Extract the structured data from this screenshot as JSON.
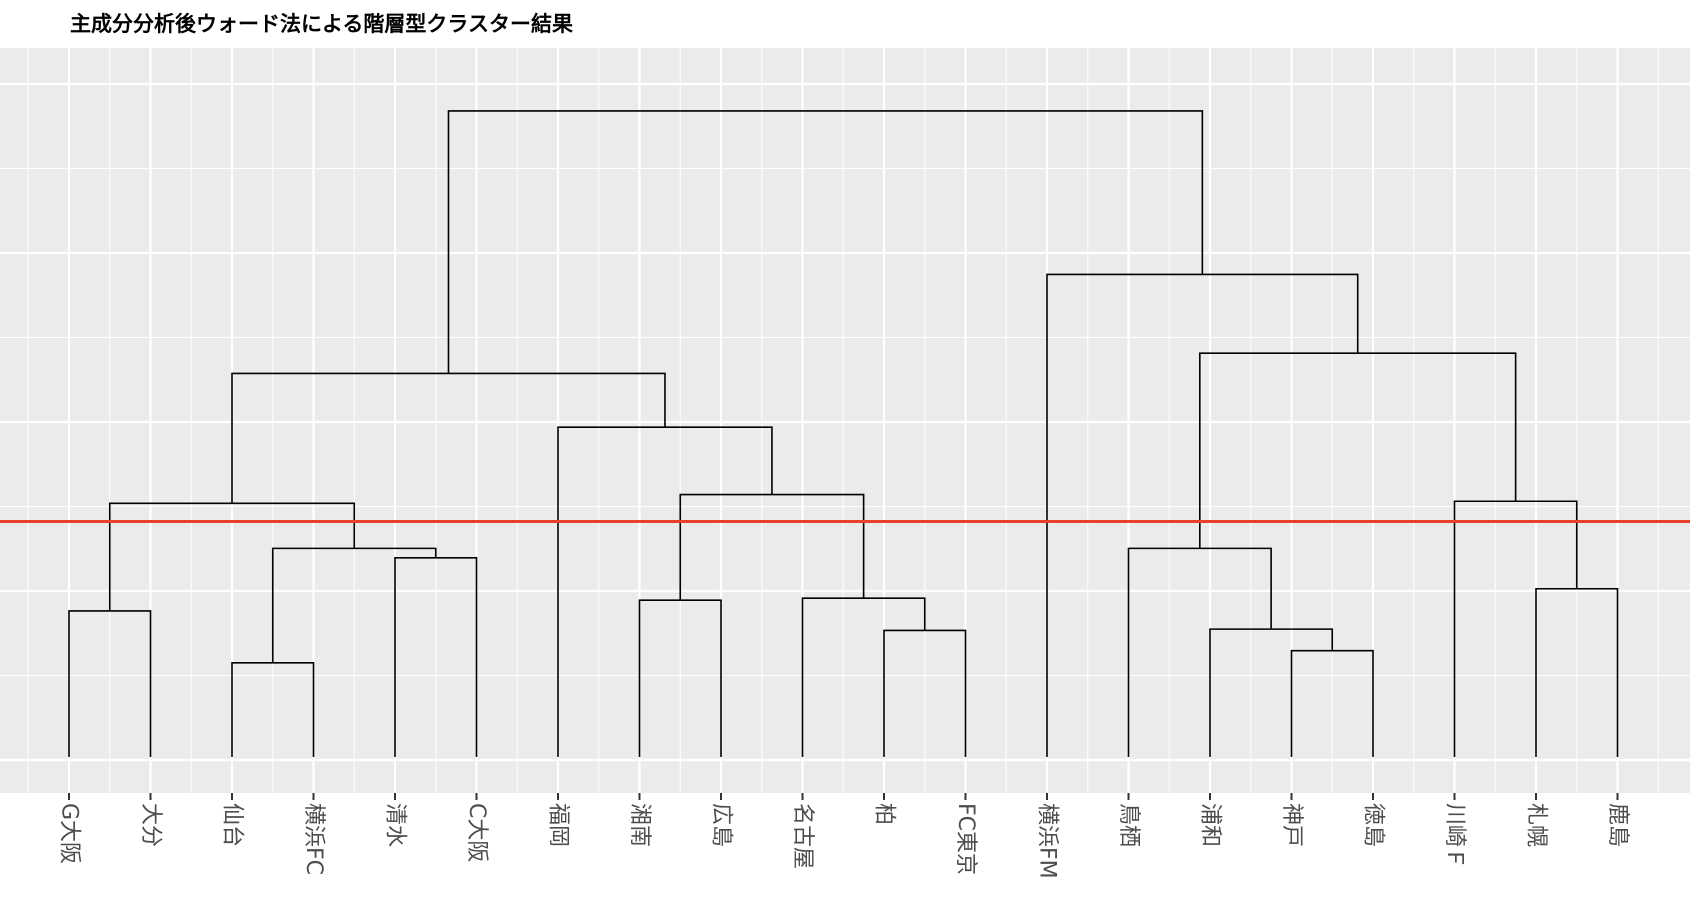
{
  "chart_data": {
    "type": "dendrogram",
    "title": "主成分分析後ウォード法による階層型クラスター結果",
    "xlabel": "",
    "ylabel": "",
    "leaves": [
      "G大阪",
      "大分",
      "仙台",
      "横浜FC",
      "清水",
      "C大阪",
      "福岡",
      "湘南",
      "広島",
      "名古屋",
      "柏",
      "FC東京",
      "横浜FM",
      "鳥栖",
      "浦和",
      "神戸",
      "徳島",
      "川崎Ｆ",
      "札幌",
      "鹿島"
    ],
    "merge_height_scale": "relative, 0 = leaves, 1 = root",
    "merges": [
      {
        "left": "G大阪",
        "right": "大分",
        "height": 0.217
      },
      {
        "left": "仙台",
        "right": "横浜FC",
        "height": 0.14
      },
      {
        "left": "清水",
        "right": "C大阪",
        "height": 0.296
      },
      {
        "left": "m2",
        "right": "m3",
        "height": 0.31
      },
      {
        "left": "m1",
        "right": "m4",
        "height": 0.377
      },
      {
        "left": "湘南",
        "right": "広島",
        "height": 0.233
      },
      {
        "left": "柏",
        "right": "FC東京",
        "height": 0.188
      },
      {
        "left": "名古屋",
        "right": "m7",
        "height": 0.236
      },
      {
        "left": "m6",
        "right": "m8",
        "height": 0.39
      },
      {
        "left": "福岡",
        "right": "m9",
        "height": 0.49
      },
      {
        "left": "m5",
        "right": "m10",
        "height": 0.57
      },
      {
        "left": "神戸",
        "right": "徳島",
        "height": 0.158
      },
      {
        "left": "浦和",
        "right": "m12",
        "height": 0.19
      },
      {
        "left": "鳥栖",
        "right": "m13",
        "height": 0.31
      },
      {
        "left": "札幌",
        "right": "鹿島",
        "height": 0.25
      },
      {
        "left": "川崎Ｆ",
        "right": "m15",
        "height": 0.38
      },
      {
        "left": "m14",
        "right": "m16",
        "height": 0.6
      },
      {
        "left": "横浜FM",
        "right": "m17",
        "height": 0.717
      },
      {
        "left": "m11",
        "right": "m18",
        "height": 0.96
      }
    ],
    "cut_height": 0.35,
    "cut_line_color": "#e8402c",
    "panel_background": "#ebebeb",
    "grid": true
  }
}
